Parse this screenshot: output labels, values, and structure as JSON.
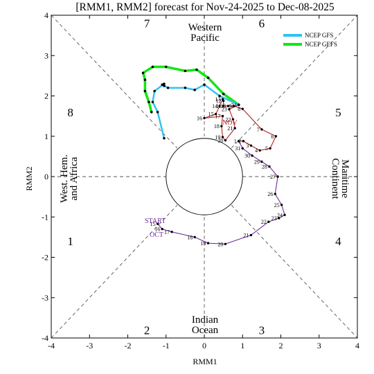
{
  "chart_data": {
    "type": "line",
    "title": "[RMM1, RMM2] forecast for Nov-24-2025 to Dec-08-2025",
    "xlabel": "RMM1",
    "ylabel": "RMM2",
    "xlim": [
      -4,
      4
    ],
    "ylim": [
      -4,
      4
    ],
    "xticks": [
      "-4",
      "-3",
      "-2",
      "-1",
      "0",
      "1",
      "2",
      "3",
      "4"
    ],
    "yticks": [
      "-4",
      "-3",
      "-2",
      "-1",
      "0",
      "1",
      "2",
      "3",
      "4"
    ],
    "phases": [
      "1",
      "2",
      "3",
      "4",
      "5",
      "6",
      "7",
      "8"
    ],
    "regions": {
      "top": [
        "Western",
        "Pacific"
      ],
      "bottom": [
        "Indian",
        "Ocean"
      ],
      "left": [
        "West. Hem.",
        "and Africa"
      ],
      "right": [
        "Maritime",
        "Continent"
      ]
    },
    "legend": [
      {
        "name": "NCEP GFS",
        "color": "#33c1f3"
      },
      {
        "name": "NCEP GEFS",
        "color": "#11e711"
      }
    ],
    "annotations": {
      "start": "START",
      "oct": "OCT",
      "nov": "NOV"
    },
    "colors": {
      "oct": "#6f2a9e",
      "nov": "#b22222",
      "gfs": "#33c1f3",
      "gefs": "#11e711",
      "gefs_ensemble": "#22c022",
      "gfs_ensemble": "#33c1f3"
    },
    "series": [
      {
        "month": "oct",
        "points": [
          {
            "label": "15",
            "x": -1.22,
            "y": -1.17
          },
          {
            "label": "16",
            "x": -1.1,
            "y": -1.3
          },
          {
            "label": "17",
            "x": -0.85,
            "y": -1.37
          },
          {
            "label": "18",
            "x": -0.25,
            "y": -1.5
          },
          {
            "label": "19",
            "x": 0.1,
            "y": -1.65
          },
          {
            "label": "20",
            "x": 0.55,
            "y": -1.67
          },
          {
            "label": "21",
            "x": 1.22,
            "y": -1.45
          },
          {
            "label": "22",
            "x": 1.68,
            "y": -1.12
          },
          {
            "label": "23",
            "x": 1.95,
            "y": -1.03
          },
          {
            "label": "24",
            "x": 2.1,
            "y": -0.95
          },
          {
            "label": "25",
            "x": 2.02,
            "y": -0.7
          },
          {
            "label": "26",
            "x": 1.85,
            "y": -0.43
          },
          {
            "label": "27",
            "x": 1.92,
            "y": 0.0
          },
          {
            "label": "28",
            "x": 1.7,
            "y": 0.25
          },
          {
            "label": "29",
            "x": 1.5,
            "y": 0.37
          },
          {
            "label": "30",
            "x": 1.25,
            "y": 0.52
          },
          {
            "label": "31",
            "x": 1.0,
            "y": 0.7
          },
          {
            "label": "1",
            "x": 0.9,
            "y": 0.88
          }
        ]
      },
      {
        "month": "nov",
        "points": [
          {
            "label": "2",
            "x": 1.02,
            "y": 0.88
          },
          {
            "label": "3",
            "x": 1.22,
            "y": 0.77
          },
          {
            "label": "4",
            "x": 1.45,
            "y": 0.65
          },
          {
            "label": "5",
            "x": 1.72,
            "y": 0.7
          },
          {
            "label": "6",
            "x": 1.87,
            "y": 1.0
          },
          {
            "label": "7",
            "x": 1.5,
            "y": 1.17
          },
          {
            "label": "8",
            "x": 1.0,
            "y": 1.68
          },
          {
            "label": "9",
            "x": 0.77,
            "y": 1.75
          },
          {
            "label": "10",
            "x": 0.62,
            "y": 1.75
          },
          {
            "label": "11",
            "x": 0.5,
            "y": 1.75
          },
          {
            "label": "12",
            "x": 0.5,
            "y": 1.88
          },
          {
            "label": "13",
            "x": 0.48,
            "y": 1.92
          },
          {
            "label": "14",
            "x": 0.4,
            "y": 1.75
          },
          {
            "label": "15",
            "x": 0.3,
            "y": 1.55
          },
          {
            "label": "16",
            "x": 0.0,
            "y": 1.45
          },
          {
            "label": "17",
            "x": 0.48,
            "y": 1.5
          },
          {
            "label": "18",
            "x": 0.45,
            "y": 1.25
          },
          {
            "label": "19",
            "x": 0.48,
            "y": 0.98
          },
          {
            "label": "20",
            "x": 0.55,
            "y": 0.9
          },
          {
            "label": "21",
            "x": 0.8,
            "y": 1.2
          },
          {
            "label": "22",
            "x": 0.75,
            "y": 1.42
          },
          {
            "label": "23",
            "x": 0.65,
            "y": 1.67
          },
          {
            "label": "24",
            "x": 0.9,
            "y": 1.78
          }
        ]
      },
      {
        "name": "NCEP GFS",
        "points": [
          {
            "x": 0.9,
            "y": 1.78
          },
          {
            "x": 0.4,
            "y": 2.0
          },
          {
            "x": 0.0,
            "y": 2.28
          },
          {
            "x": -0.25,
            "y": 2.15
          },
          {
            "x": -0.5,
            "y": 2.2
          },
          {
            "x": -0.95,
            "y": 2.2
          },
          {
            "x": -1.1,
            "y": 2.28
          },
          {
            "x": -1.05,
            "y": 2.25
          },
          {
            "x": -1.05,
            "y": 2.3
          },
          {
            "x": -1.3,
            "y": 2.12
          },
          {
            "x": -1.35,
            "y": 1.85
          },
          {
            "x": -1.22,
            "y": 1.6
          },
          {
            "x": -1.05,
            "y": 0.95
          }
        ]
      },
      {
        "name": "NCEP GEFS",
        "points": [
          {
            "x": 0.9,
            "y": 1.78
          },
          {
            "x": 0.5,
            "y": 2.05
          },
          {
            "x": 0.1,
            "y": 2.45
          },
          {
            "x": -0.2,
            "y": 2.65
          },
          {
            "x": -0.5,
            "y": 2.62
          },
          {
            "x": -1.0,
            "y": 2.72
          },
          {
            "x": -1.35,
            "y": 2.72
          },
          {
            "x": -1.6,
            "y": 2.57
          },
          {
            "x": -1.55,
            "y": 2.4
          },
          {
            "x": -1.55,
            "y": 2.12
          },
          {
            "x": -1.45,
            "y": 1.85
          },
          {
            "x": -1.38,
            "y": 1.6
          }
        ]
      }
    ]
  }
}
